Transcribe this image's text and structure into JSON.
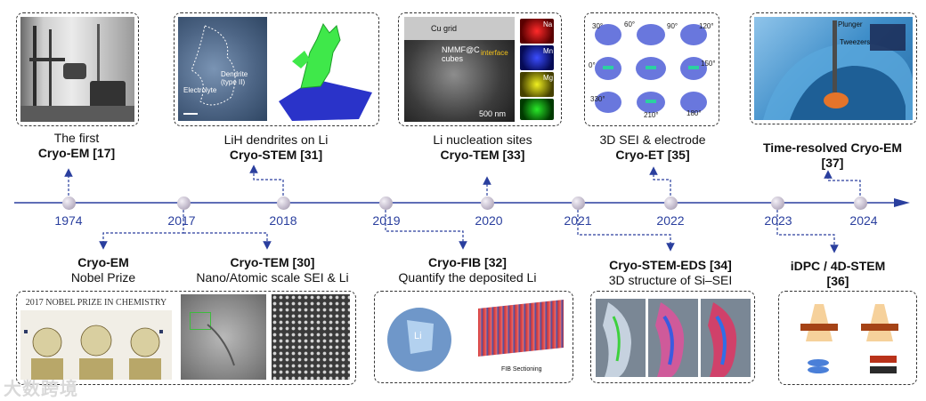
{
  "timeline": {
    "years": [
      "1974",
      "2017",
      "2018",
      "2019",
      "2020",
      "2021",
      "2022",
      "2023",
      "2024"
    ],
    "color": "#2a3f9e"
  },
  "events_top": [
    {
      "line1": "The first",
      "line2": "Cryo-EM [17]"
    },
    {
      "line1": "LiH dendrites on Li",
      "line2": "Cryo-STEM [31]"
    },
    {
      "line1": "Li nucleation sites",
      "line2": "Cryo-TEM [33]"
    },
    {
      "line1": "3D SEI & electrode",
      "line2": "Cryo-ET [35]"
    },
    {
      "line1": "",
      "line2": "Time-resolved Cryo-EM",
      "line3": "[37]"
    }
  ],
  "events_bottom": [
    {
      "line1": "Cryo-EM",
      "line2": "Nobel Prize"
    },
    {
      "line1": "Cryo-TEM [30]",
      "line2": "Nano/Atomic scale SEI & Li"
    },
    {
      "line1": "Cryo-FIB [32]",
      "line2": "Quantify the deposited Li"
    },
    {
      "line1": "Cryo-STEM-EDS [34]",
      "line2": "3D structure of Si–SEI"
    },
    {
      "line1": "iDPC / 4D-STEM",
      "line2": "[36]"
    }
  ],
  "image_text": {
    "dendrite_label": "Dendrite (type II)",
    "electrolyte_label": "Electrolyte",
    "cu_grid": "Cu grid",
    "nmmf": "NMMF@C cubes",
    "interface": "interface",
    "scale_500": "500 nm",
    "elements": [
      "Na",
      "Mn",
      "Mg"
    ],
    "angles": [
      "30°",
      "60°",
      "90°",
      "120°",
      "150°",
      "180°",
      "210°",
      "330°",
      "0°"
    ],
    "nobel": "2017 NOBEL PRIZE IN CHEMISTRY",
    "fib": "FIB Sectioning",
    "li": "Li",
    "plunger": "Plunger",
    "tweezers": "Tweezers",
    "watermark": "大数跨境"
  }
}
